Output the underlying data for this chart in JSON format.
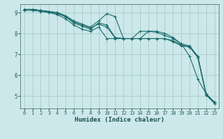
{
  "title": "",
  "xlabel": "Humidex (Indice chaleur)",
  "xlim": [
    -0.5,
    23.5
  ],
  "ylim": [
    4.4,
    9.4
  ],
  "yticks": [
    5,
    6,
    7,
    8,
    9
  ],
  "xticks": [
    0,
    1,
    2,
    3,
    4,
    5,
    6,
    7,
    8,
    9,
    10,
    11,
    12,
    13,
    14,
    15,
    16,
    17,
    18,
    19,
    20,
    21,
    22,
    23
  ],
  "bg_color": "#cce8ea",
  "grid_color": "#aacccc",
  "line_color": "#1a6b6b",
  "lines": [
    {
      "x": [
        0,
        1,
        2,
        3,
        4,
        5,
        6,
        7,
        8,
        9,
        10,
        11,
        12,
        13,
        14,
        15,
        16,
        17,
        18,
        19,
        20,
        21,
        22,
        23
      ],
      "y": [
        9.15,
        9.15,
        9.1,
        9.05,
        9.0,
        8.85,
        8.6,
        8.45,
        8.3,
        8.6,
        8.95,
        8.8,
        7.75,
        7.75,
        7.75,
        8.1,
        8.1,
        8.0,
        7.8,
        7.5,
        6.9,
        5.8,
        5.1,
        4.7
      ]
    },
    {
      "x": [
        0,
        1,
        2,
        3,
        4,
        5,
        6,
        7,
        8,
        9,
        10,
        11,
        12,
        13,
        14,
        15,
        16,
        17,
        18,
        19,
        20,
        21,
        22,
        23
      ],
      "y": [
        9.15,
        9.15,
        9.1,
        9.05,
        9.0,
        8.8,
        8.5,
        8.35,
        8.2,
        8.5,
        8.4,
        7.8,
        7.75,
        7.75,
        8.1,
        8.1,
        8.05,
        7.9,
        7.75,
        7.5,
        7.4,
        6.9,
        5.1,
        4.7
      ]
    },
    {
      "x": [
        0,
        1,
        2,
        3,
        4,
        5,
        6,
        7,
        8,
        9,
        10,
        11,
        12,
        13,
        14,
        15,
        16,
        17,
        18,
        19,
        20,
        21,
        22,
        23
      ],
      "y": [
        9.15,
        9.15,
        9.1,
        9.0,
        8.9,
        8.7,
        8.4,
        8.2,
        8.1,
        8.3,
        7.75,
        7.75,
        7.75,
        7.75,
        7.75,
        7.75,
        7.75,
        7.75,
        7.6,
        7.4,
        7.35,
        6.85,
        5.05,
        4.65
      ]
    },
    {
      "x": [
        0,
        1,
        2,
        3,
        4,
        5,
        6,
        7,
        8,
        9,
        10,
        11,
        12,
        13,
        14,
        15,
        16,
        17,
        18,
        19,
        20,
        21,
        22,
        23
      ],
      "y": [
        9.1,
        9.1,
        9.05,
        9.0,
        8.95,
        8.8,
        8.55,
        8.4,
        8.25,
        8.45,
        8.3,
        7.78,
        7.75,
        7.75,
        7.75,
        7.75,
        7.75,
        7.75,
        7.65,
        7.45,
        7.35,
        6.85,
        5.05,
        4.65
      ]
    }
  ]
}
